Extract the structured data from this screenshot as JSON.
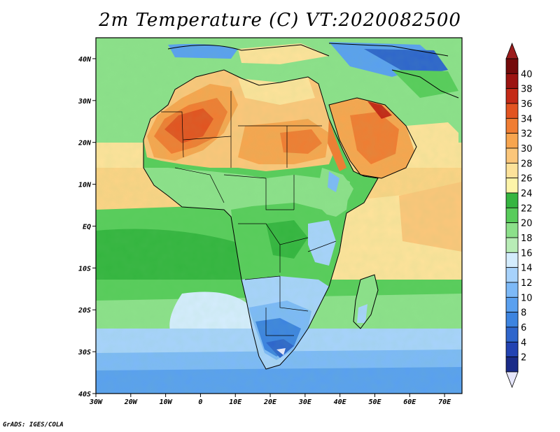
{
  "title": "2m Temperature (C) VT:2020082500",
  "credit": "GrADS: IGES/COLA",
  "chart_data": {
    "type": "heatmap",
    "title": "2m Temperature (C) VT:2020082500",
    "variable": "2m Temperature",
    "units": "C",
    "valid_time": "2020082500",
    "region": "Africa",
    "x_ticks": [
      "30W",
      "20W",
      "10W",
      "0",
      "10E",
      "20E",
      "30E",
      "40E",
      "50E",
      "60E",
      "70E"
    ],
    "x_tick_values": [
      -30,
      -20,
      -10,
      0,
      10,
      20,
      30,
      40,
      50,
      60,
      70
    ],
    "y_ticks": [
      "40N",
      "30N",
      "20N",
      "10N",
      "EQ",
      "10S",
      "20S",
      "30S",
      "40S"
    ],
    "y_tick_values": [
      40,
      30,
      20,
      10,
      0,
      -10,
      -20,
      -30,
      -40
    ],
    "xlim": [
      -30,
      75
    ],
    "ylim": [
      -40,
      45
    ],
    "colorbar": {
      "labels": [
        "2",
        "4",
        "6",
        "8",
        "10",
        "12",
        "14",
        "16",
        "18",
        "20",
        "22",
        "24",
        "26",
        "28",
        "30",
        "32",
        "34",
        "36",
        "38",
        "40"
      ],
      "colors": [
        "#1a2b88",
        "#2343b2",
        "#2f66cc",
        "#3d84e0",
        "#5aa0ef",
        "#7db9f7",
        "#a7d2fb",
        "#d4ecfd",
        "#b8ecb6",
        "#8ce08a",
        "#58cc5b",
        "#35b540",
        "#fdf4a9",
        "#fde29a",
        "#fbc67a",
        "#f7a54f",
        "#f07d33",
        "#e25421",
        "#c42a17",
        "#9c1411",
        "#740b0b"
      ],
      "extend_low_color": "#e6e6fa",
      "extend_high_color": "#9c1d1d"
    }
  }
}
